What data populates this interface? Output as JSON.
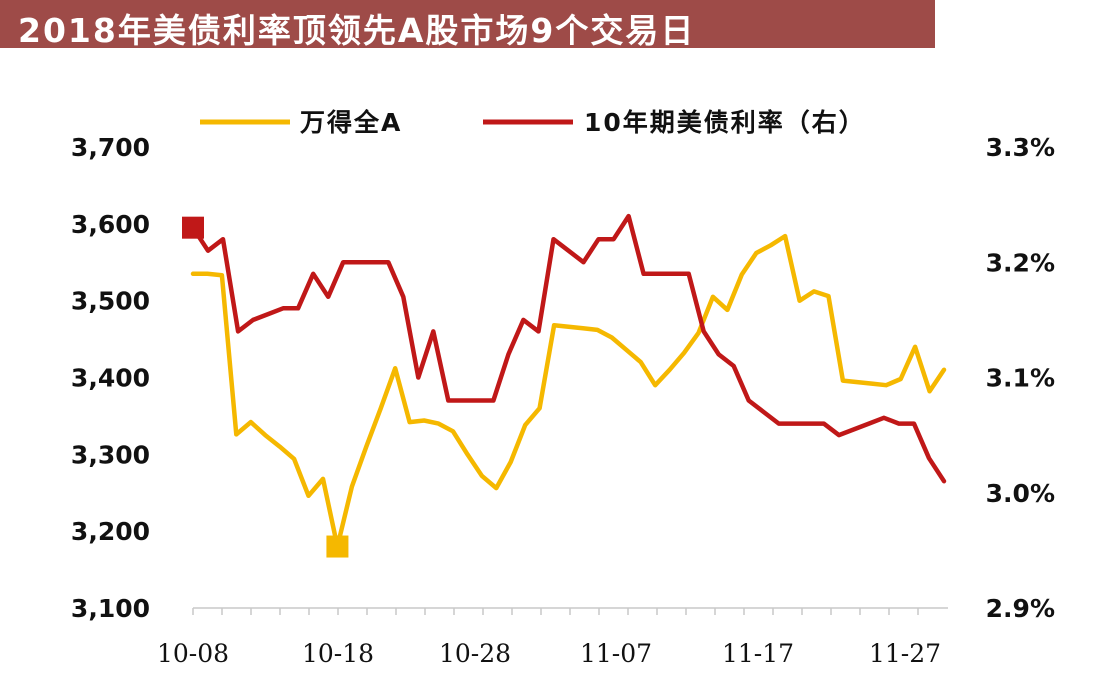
{
  "chart_data": {
    "type": "line",
    "title": "2018年美债利率顶领先A股市场9个交易日",
    "x_labels": [
      "10-08",
      "10-18",
      "10-28",
      "11-07",
      "11-17",
      "11-27"
    ],
    "left_axis": {
      "ticks": [
        "3,100",
        "3,200",
        "3,300",
        "3,400",
        "3,500",
        "3,600",
        "3,700"
      ],
      "ylim": [
        3100,
        3700
      ]
    },
    "right_axis": {
      "ticks": [
        "2.9%",
        "3.0%",
        "3.1%",
        "3.2%",
        "3.3%"
      ],
      "ylim": [
        2.9,
        3.3
      ]
    },
    "legend_position": "top",
    "series": [
      {
        "name": "万得全A",
        "axis": "left",
        "color": "#f5b800",
        "values": [
          3535,
          3535,
          3533,
          3326,
          3342,
          3325,
          3310,
          3294,
          3246,
          3268,
          3180,
          3258,
          3310,
          3360,
          3412,
          3342,
          3344,
          3340,
          3330,
          3300,
          3272,
          3256,
          3290,
          3338,
          3360,
          3468,
          3466,
          3464,
          3462,
          3452,
          3436,
          3420,
          3390,
          3410,
          3432,
          3458,
          3505,
          3488,
          3534,
          3562,
          3572,
          3584,
          3500,
          3512,
          3506,
          3396,
          3394,
          3392,
          3390,
          3398,
          3440,
          3382,
          3410
        ]
      },
      {
        "name": "10年期美债利率（右）",
        "axis": "right",
        "color": "#c01818",
        "values": [
          3.23,
          3.21,
          3.22,
          3.14,
          3.15,
          3.155,
          3.16,
          3.16,
          3.19,
          3.17,
          3.2,
          3.2,
          3.2,
          3.2,
          3.17,
          3.1,
          3.14,
          3.08,
          3.08,
          3.08,
          3.08,
          3.12,
          3.15,
          3.14,
          3.22,
          3.21,
          3.2,
          3.22,
          3.22,
          3.24,
          3.19,
          3.19,
          3.19,
          3.19,
          3.14,
          3.12,
          3.11,
          3.08,
          3.07,
          3.06,
          3.06,
          3.06,
          3.06,
          3.05,
          3.055,
          3.06,
          3.065,
          3.06,
          3.06,
          3.03,
          3.01
        ]
      }
    ],
    "markers": [
      {
        "series": "万得全A",
        "index": 10,
        "value": 3180,
        "color": "#f5b800"
      },
      {
        "series": "10年期美债利率（右）",
        "index": 0,
        "value": 3.23,
        "color": "#c01818"
      }
    ]
  }
}
